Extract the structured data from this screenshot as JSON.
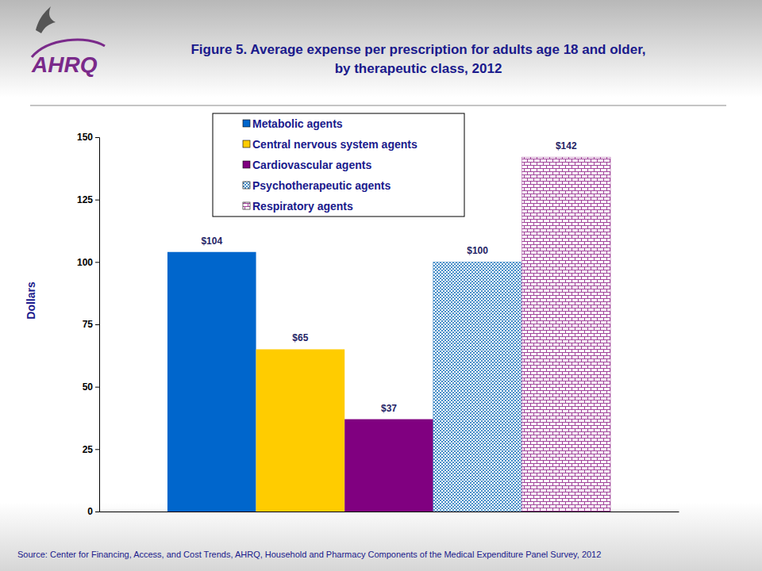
{
  "chart_data": {
    "type": "bar",
    "title": "Figure 5. Average expense per prescription for adults age 18 and older, by therapeutic class, 2012",
    "y_label": "Dollars",
    "source": "Source: Center for Financing, Access, and Cost Trends, AHRQ, Household and Pharmacy Components of the Medical Expenditure Panel Survey,  2012",
    "categories": [
      null
    ],
    "series": [
      {
        "name": "Metabolic agents",
        "color": "#0066cc",
        "values": [
          104
        ],
        "value_labels": [
          "$104"
        ]
      },
      {
        "name": "Central nervous system agents",
        "color": "#ffcc00",
        "values": [
          65
        ],
        "value_labels": [
          "$65"
        ]
      },
      {
        "name": "Cardiovascular agents",
        "color": "#800080",
        "values": [
          37
        ],
        "value_labels": [
          "$37"
        ]
      },
      {
        "name": "Psychotherapeutic agents",
        "color": "#2f7fc1",
        "values": [
          100
        ],
        "value_labels": [
          "$100"
        ]
      },
      {
        "name": "Respiratory agents",
        "color": "#a0449a",
        "values": [
          142
        ],
        "value_labels": [
          "$142"
        ]
      }
    ],
    "ylim": [
      0,
      150
    ],
    "yticks": [
      0,
      25,
      50,
      75,
      100,
      125,
      150
    ],
    "data_labels": true,
    "legend": "top",
    "grid": false
  },
  "header": {
    "logo": "AHRQ"
  }
}
